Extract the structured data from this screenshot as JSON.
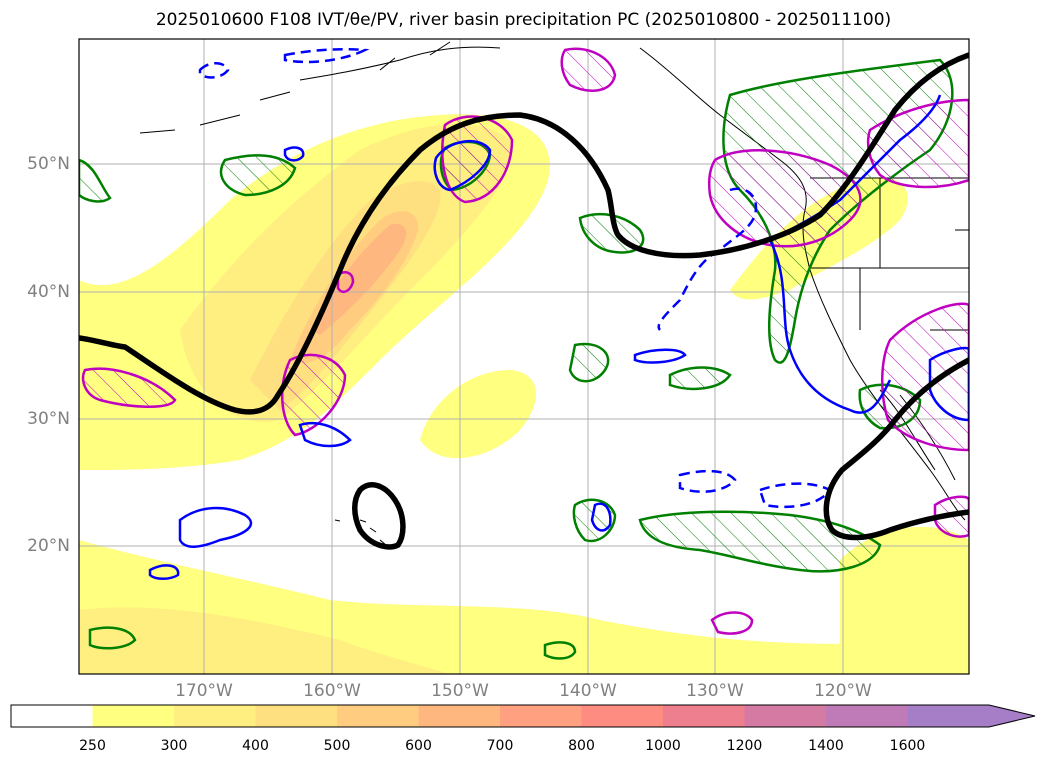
{
  "title": "2025010600 F108 IVT/θe/PV, river basin precipitation PC (2025010800 - 2025011100)",
  "lat_labels": [
    "50°N",
    "40°N",
    "30°N",
    "20°N"
  ],
  "lon_labels": [
    "170°W",
    "160°W",
    "150°W",
    "140°W",
    "130°W",
    "120°W"
  ],
  "colorbar": {
    "ticks": [
      "250",
      "300",
      "400",
      "500",
      "600",
      "700",
      "800",
      "1000",
      "1200",
      "1400",
      "1600"
    ],
    "colors": [
      "#ffffff",
      "#ffff80",
      "#ffef80",
      "#ffe080",
      "#ffcc80",
      "#ffb780",
      "#ffa080",
      "#ff8c80",
      "#ee7f8f",
      "#d47aa3",
      "#bf7bb8",
      "#a67ec8"
    ],
    "extend": "max"
  },
  "legend_colors": {
    "ivt_fill": "#ffe080",
    "jet_contour": "#000000",
    "positive_contour": "#008000",
    "blue_contour": "#0000ff",
    "magenta_contour": "#c000c0"
  }
}
